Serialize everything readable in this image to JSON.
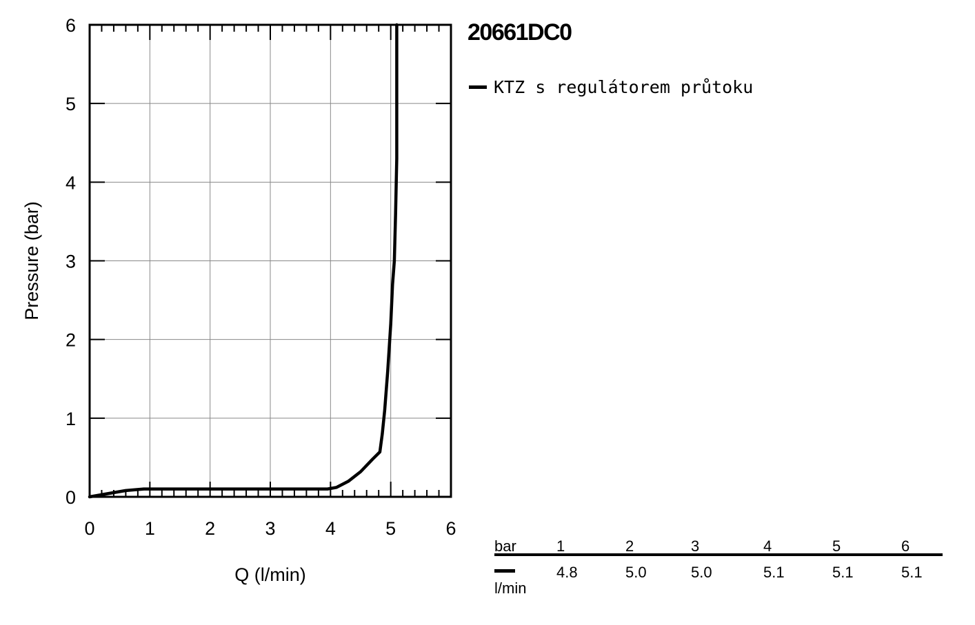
{
  "title": "20661DC0",
  "legend": [
    {
      "label": "KTZ s regulátorem průtoku",
      "color": "#000000"
    }
  ],
  "chart_data": {
    "type": "line",
    "xlabel": "Q (l/min)",
    "ylabel": "Pressure (bar)",
    "xlim": [
      0,
      6
    ],
    "ylim": [
      0,
      6
    ],
    "xticks": [
      "0",
      "1",
      "2",
      "3",
      "4",
      "5",
      "6"
    ],
    "yticks": [
      "0",
      "1",
      "2",
      "3",
      "4",
      "5",
      "6"
    ],
    "grid": true,
    "legend_position": "right",
    "series": [
      {
        "name": "KTZ s regulátorem průtoku",
        "color": "#000000",
        "x": [
          0,
          0.3,
          0.6,
          0.9,
          1.5,
          2.5,
          3.5,
          3.95,
          4.1,
          4.3,
          4.5,
          4.7,
          4.82,
          4.86,
          4.9,
          4.95,
          5.0,
          5.03,
          5.06,
          5.08,
          5.1,
          5.1
        ],
        "y": [
          0,
          0.04,
          0.08,
          0.1,
          0.1,
          0.1,
          0.1,
          0.1,
          0.12,
          0.2,
          0.32,
          0.48,
          0.57,
          0.8,
          1.1,
          1.6,
          2.2,
          2.7,
          3.0,
          3.6,
          4.3,
          6.0
        ]
      }
    ]
  },
  "table": {
    "header_unit": "bar",
    "pressures": [
      "1",
      "2",
      "3",
      "4",
      "5",
      "6"
    ],
    "flow_unit": "l/min",
    "flows": [
      "4.8",
      "5.0",
      "5.0",
      "5.1",
      "5.1",
      "5.1"
    ]
  }
}
